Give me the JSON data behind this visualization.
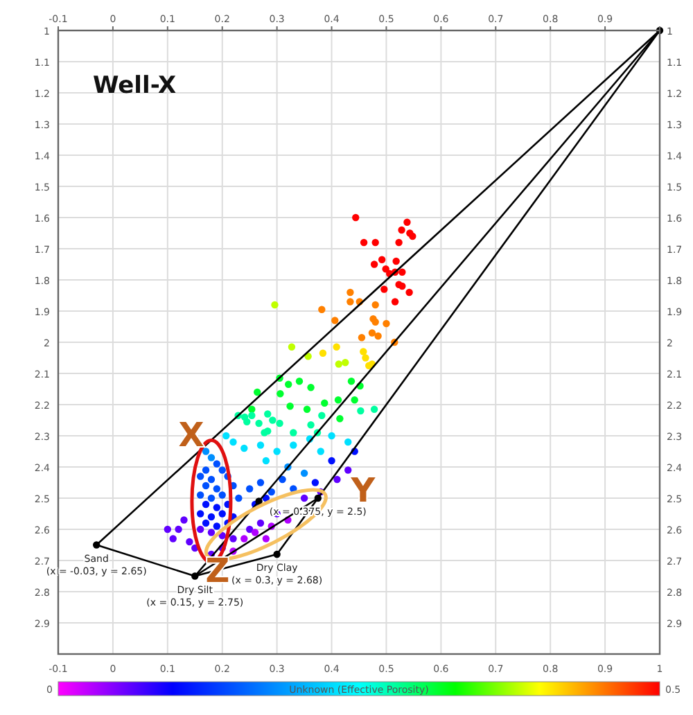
{
  "chart_data": {
    "type": "scatter",
    "grid": true,
    "clabel": "Unknown (Effective Porosity)",
    "xlim": [
      -0.1,
      1
    ],
    "xticks": [
      -0.1,
      0,
      0.1,
      0.2,
      0.3,
      0.4,
      0.5,
      0.6,
      0.7,
      0.8,
      0.9,
      1
    ],
    "x2lim": [
      -0.1,
      1
    ],
    "x2ticks": [
      -0.1,
      0,
      0.1,
      0.2,
      0.3,
      0.4,
      0.5,
      0.6,
      0.7,
      0.8,
      0.9,
      {
        "value": 1,
        "label": null
      }
    ],
    "ylim": [
      3,
      1
    ],
    "yticks": [
      1,
      1.1,
      1.2,
      1.3,
      1.4,
      1.5,
      1.6,
      1.7,
      1.8,
      1.9,
      2,
      2.1,
      2.2,
      2.3,
      2.4,
      2.5,
      2.6,
      2.7,
      2.8,
      2.9
    ],
    "y2lim": [
      3,
      1
    ],
    "y2ticks": [
      1,
      1.1,
      1.2,
      1.3,
      1.4,
      1.5,
      1.6,
      1.7,
      1.8,
      1.9,
      2,
      2.1,
      2.2,
      2.3,
      2.4,
      2.5,
      2.6,
      2.7,
      2.8,
      2.9
    ],
    "annotations": [
      "Well-X",
      {
        "text": "Sand",
        "x": -0.03,
        "y": 2.65
      },
      {
        "text": "(x = -0.03, y = 2.65)",
        "x": -0.03,
        "y": 2.65
      },
      {
        "text": "Dry Silt",
        "x": 0.15,
        "y": 2.75
      },
      {
        "text": "(x = 0.15, y = 2.75)",
        "x": 0.15,
        "y": 2.75
      },
      {
        "text": "Dry Clay",
        "x": 0.3,
        "y": 2.68
      },
      {
        "text": "(x = 0.3, y = 2.68)",
        "x": 0.3,
        "y": 2.68
      },
      {
        "text": "(x = 0.375, y = 2.5)",
        "x": 0.375,
        "y": 2.5
      },
      "X",
      "Y",
      "Z",
      "0",
      "0.5"
    ],
    "series": [
      {
        "marker": "circle",
        "x": [
          0.444,
          0.538,
          0.528,
          0.543,
          0.548,
          0.459,
          0.48,
          0.523,
          0.492,
          0.518,
          0.478,
          0.499,
          0.506,
          0.516,
          0.529,
          0.496,
          0.523,
          0.529,
          0.542,
          0.516,
          0.434,
          0.434,
          0.451,
          0.48,
          0.476,
          0.48,
          0.5,
          0.474,
          0.485,
          0.455,
          0.515,
          0.382,
          0.406,
          0.458,
          0.462,
          0.474,
          0.468,
          0.296,
          0.409,
          0.384,
          0.327,
          0.357,
          0.413,
          0.425,
          0.436,
          0.452,
          0.305,
          0.321,
          0.341,
          0.362,
          0.306,
          0.264,
          0.324,
          0.387,
          0.412,
          0.442,
          0.355,
          0.415,
          0.453,
          0.478,
          0.254,
          0.283,
          0.254,
          0.241,
          0.229,
          0.382,
          0.292,
          0.267,
          0.245,
          0.305,
          0.362,
          0.283,
          0.277,
          0.33,
          0.207,
          0.374,
          0.22,
          0.24,
          0.27,
          0.3,
          0.33,
          0.36,
          0.4,
          0.43,
          0.38,
          0.28,
          0.32,
          0.35,
          0.17,
          0.18,
          0.19,
          0.17,
          0.2,
          0.16,
          0.18,
          0.21,
          0.17,
          0.19,
          0.22,
          0.16,
          0.18,
          0.2,
          0.23,
          0.17,
          0.19,
          0.21,
          0.16,
          0.18,
          0.2,
          0.22,
          0.17,
          0.19,
          0.21,
          0.16,
          0.18,
          0.2,
          0.25,
          0.27,
          0.29,
          0.31,
          0.33,
          0.26,
          0.28,
          0.442,
          0.4,
          0.37,
          0.35,
          0.38,
          0.41,
          0.43,
          0.3,
          0.27,
          0.25,
          0.22,
          0.2,
          0.18,
          0.12,
          0.11,
          0.13,
          0.14,
          0.1,
          0.15,
          0.24,
          0.26,
          0.29,
          0.32,
          0.22,
          0.28
        ],
        "values": [
          1.6,
          1.615,
          1.64,
          1.65,
          1.66,
          1.68,
          1.68,
          1.68,
          1.735,
          1.74,
          1.75,
          1.765,
          1.78,
          1.775,
          1.775,
          1.83,
          1.815,
          1.82,
          1.84,
          1.87,
          1.84,
          1.87,
          1.87,
          1.88,
          1.925,
          1.935,
          1.94,
          1.97,
          1.98,
          1.985,
          2.0,
          1.895,
          1.93,
          2.03,
          2.05,
          2.07,
          2.075,
          1.88,
          2.015,
          2.035,
          2.015,
          2.045,
          2.07,
          2.065,
          2.125,
          2.14,
          2.115,
          2.135,
          2.125,
          2.145,
          2.165,
          2.16,
          2.205,
          2.195,
          2.185,
          2.185,
          2.215,
          2.245,
          2.22,
          2.215,
          2.215,
          2.23,
          2.235,
          2.24,
          2.235,
          2.235,
          2.25,
          2.26,
          2.255,
          2.26,
          2.265,
          2.285,
          2.29,
          2.29,
          2.3,
          2.29,
          2.32,
          2.34,
          2.33,
          2.35,
          2.33,
          2.31,
          2.3,
          2.32,
          2.35,
          2.38,
          2.4,
          2.42,
          2.35,
          2.37,
          2.39,
          2.41,
          2.41,
          2.43,
          2.44,
          2.43,
          2.46,
          2.47,
          2.46,
          2.49,
          2.5,
          2.49,
          2.5,
          2.52,
          2.53,
          2.52,
          2.55,
          2.56,
          2.55,
          2.56,
          2.58,
          2.59,
          2.58,
          2.6,
          2.61,
          2.62,
          2.47,
          2.45,
          2.48,
          2.44,
          2.47,
          2.52,
          2.5,
          2.35,
          2.38,
          2.45,
          2.5,
          2.48,
          2.44,
          2.41,
          2.55,
          2.58,
          2.6,
          2.63,
          2.66,
          2.68,
          2.6,
          2.63,
          2.57,
          2.64,
          2.6,
          2.66,
          2.63,
          2.61,
          2.59,
          2.57,
          2.67,
          2.63
        ],
        "colors": [
          "#ff0000",
          "#ff0000",
          "#ff0000",
          "#ff0000",
          "#ff0000",
          "#ff0000",
          "#ff0000",
          "#ff0000",
          "#ff0000",
          "#ff0000",
          "#ff0000",
          "#ff0000",
          "#ff0000",
          "#ff0000",
          "#ff0000",
          "#ff0000",
          "#ff0000",
          "#ff0000",
          "#ff0000",
          "#ff0000",
          "#ff8000",
          "#ff8000",
          "#ff8000",
          "#ff8000",
          "#ff8000",
          "#ff8000",
          "#ff8000",
          "#ff8000",
          "#ff8000",
          "#ff8000",
          "#ff8000",
          "#ff8000",
          "#ff8000",
          "#ffe000",
          "#ffe000",
          "#ffe000",
          "#ffe000",
          "#c0ff00",
          "#ffe000",
          "#ffe000",
          "#c0ff00",
          "#c0ff00",
          "#c0ff00",
          "#c0ff00",
          "#00ff30",
          "#00ff30",
          "#00ff30",
          "#00ff30",
          "#00ff30",
          "#00ff30",
          "#00ff30",
          "#00ff30",
          "#00ff30",
          "#00ff30",
          "#00ff30",
          "#00ff30",
          "#00ff30",
          "#00ff30",
          "#00ffa0",
          "#00ffa0",
          "#00ff30",
          "#00ffa0",
          "#00ffa0",
          "#00ffa0",
          "#00ffa0",
          "#00ffa0",
          "#00ffa0",
          "#00ffa0",
          "#00ffa0",
          "#00ffa0",
          "#00ffa0",
          "#00ffa0",
          "#00ffa0",
          "#00ffa0",
          "#00e0ff",
          "#00ffa0",
          "#00e0ff",
          "#00e0ff",
          "#00e0ff",
          "#00e0ff",
          "#00e0ff",
          "#00e0ff",
          "#00e0ff",
          "#00e0ff",
          "#00e0ff",
          "#00e0ff",
          "#0090ff",
          "#0090ff",
          "#0090ff",
          "#0090ff",
          "#0050ff",
          "#0050ff",
          "#0050ff",
          "#0050ff",
          "#0050ff",
          "#0050ff",
          "#0050ff",
          "#0050ff",
          "#0050ff",
          "#0050ff",
          "#0050ff",
          "#0050ff",
          "#0050ff",
          "#0010ff",
          "#0010ff",
          "#0010ff",
          "#0010ff",
          "#0010ff",
          "#0010ff",
          "#0010ff",
          "#0010ff",
          "#0010ff",
          "#0010ff",
          "#6000ff",
          "#6000ff",
          "#6000ff",
          "#0050ff",
          "#0050ff",
          "#0050ff",
          "#0050ff",
          "#0050ff",
          "#0010ff",
          "#0010ff",
          "#0010ff",
          "#0010ff",
          "#0010ff",
          "#6000ff",
          "#6000ff",
          "#6000ff",
          "#6000ff",
          "#6000ff",
          "#6000ff",
          "#6000ff",
          "#6000ff",
          "#6000ff",
          "#6000ff",
          "#6000ff",
          "#6000ff",
          "#6000ff",
          "#6000ff",
          "#6000ff",
          "#6000ff",
          "#b000ff",
          "#b000ff",
          "#b000ff",
          "#b000ff",
          "#b000ff",
          "#b000ff"
        ]
      },
      {
        "type": "line",
        "color": "#000000",
        "x": [
          -0.03,
          1
        ],
        "values": [
          2.65,
          1
        ]
      },
      {
        "type": "line",
        "color": "#000000",
        "x": [
          0.267,
          1
        ],
        "values": [
          2.51,
          1
        ]
      },
      {
        "type": "line",
        "color": "#000000",
        "x": [
          0.375,
          1
        ],
        "values": [
          2.5,
          1
        ]
      },
      {
        "type": "line",
        "color": "#000000",
        "x": [
          -0.03,
          0.15
        ],
        "values": [
          2.65,
          2.75
        ]
      },
      {
        "type": "line",
        "color": "#000000",
        "x": [
          0.15,
          0.3
        ],
        "values": [
          2.75,
          2.68
        ]
      },
      {
        "type": "line",
        "color": "#000000",
        "x": [
          0.3,
          0.375
        ],
        "values": [
          2.68,
          2.5
        ]
      },
      {
        "type": "line",
        "color": "#000000",
        "x": [
          0.15,
          0.267
        ],
        "values": [
          2.75,
          2.51
        ]
      },
      {
        "type": "line",
        "color": "#000000",
        "x": [
          0.15,
          0.375
        ],
        "values": [
          2.75,
          2.5
        ]
      },
      {
        "type": "scatter",
        "color": "#000000",
        "marker": "circle",
        "x": [
          -0.03,
          0.15,
          0.3,
          0.375,
          0.267,
          1
        ],
        "values": [
          2.65,
          2.75,
          2.68,
          2.5,
          2.51,
          1
        ]
      }
    ]
  }
}
